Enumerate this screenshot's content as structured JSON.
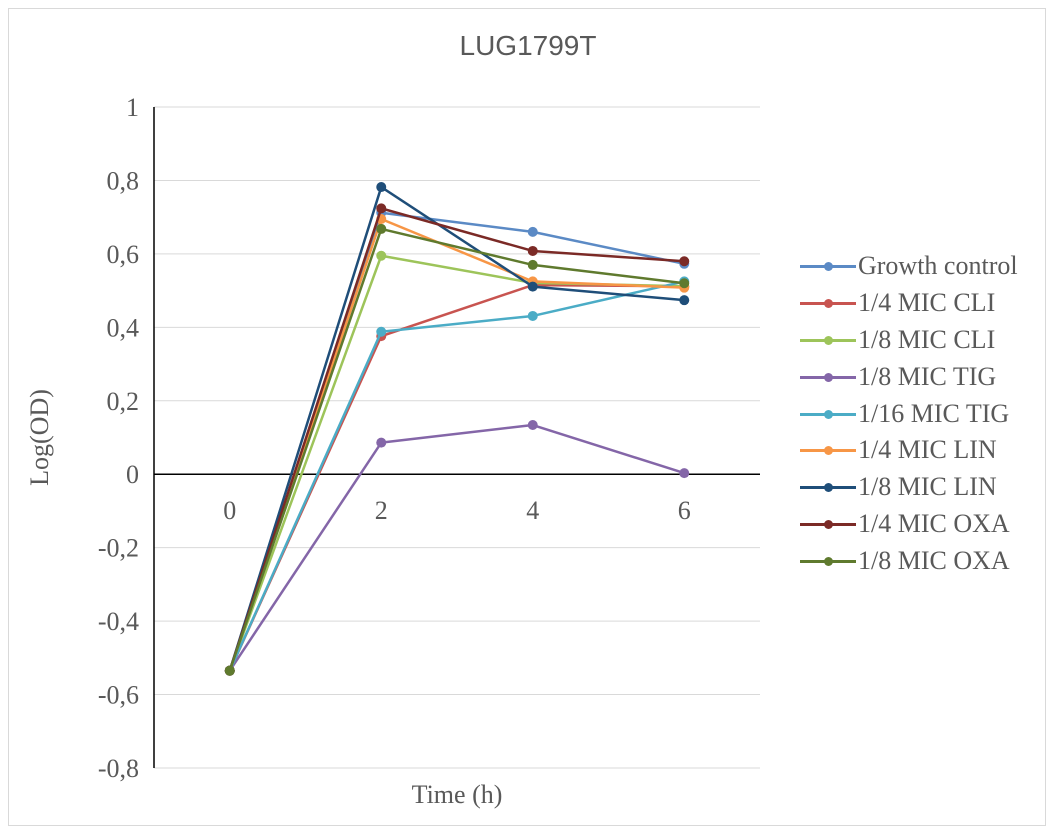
{
  "chart_data": {
    "type": "line",
    "title": "LUG1799T",
    "xlabel": "Time (h)",
    "ylabel": "Log(OD)",
    "categories": [
      "0",
      "2",
      "4",
      "6"
    ],
    "ylim": [
      -0.8,
      1
    ],
    "yticks": [
      "-0,8",
      "-0,6",
      "-0,4",
      "-0,2",
      "0",
      "0,2",
      "0,4",
      "0,6",
      "0,8",
      "1"
    ],
    "grid": true,
    "legend_position": "right",
    "series": [
      {
        "name": "Growth control",
        "color": "#5b8ac5",
        "values": [
          -0.535,
          0.712,
          0.66,
          0.573
        ]
      },
      {
        "name": "1/4 MIC CLI",
        "color": "#c85450",
        "values": [
          -0.535,
          0.376,
          0.515,
          0.512
        ]
      },
      {
        "name": "1/8 MIC CLI",
        "color": "#9dc45a",
        "values": [
          -0.535,
          0.595,
          0.521,
          0.512
        ]
      },
      {
        "name": "1/8 MIC TIG",
        "color": "#8466a8",
        "values": [
          -0.535,
          0.086,
          0.134,
          0.003
        ]
      },
      {
        "name": "1/16 MIC TIG",
        "color": "#4bacc6",
        "values": [
          -0.535,
          0.388,
          0.431,
          0.525
        ]
      },
      {
        "name": "1/4 MIC LIN",
        "color": "#f79646",
        "values": [
          -0.535,
          0.695,
          0.525,
          0.508
        ]
      },
      {
        "name": "1/8 MIC LIN",
        "color": "#1f4e79",
        "values": [
          -0.535,
          0.782,
          0.511,
          0.474
        ]
      },
      {
        "name": "1/4 MIC OXA",
        "color": "#7b2a26",
        "values": [
          -0.535,
          0.724,
          0.608,
          0.58
        ]
      },
      {
        "name": "1/8 MIC OXA",
        "color": "#5f7a2e",
        "values": [
          -0.535,
          0.668,
          0.57,
          0.52
        ]
      }
    ]
  }
}
